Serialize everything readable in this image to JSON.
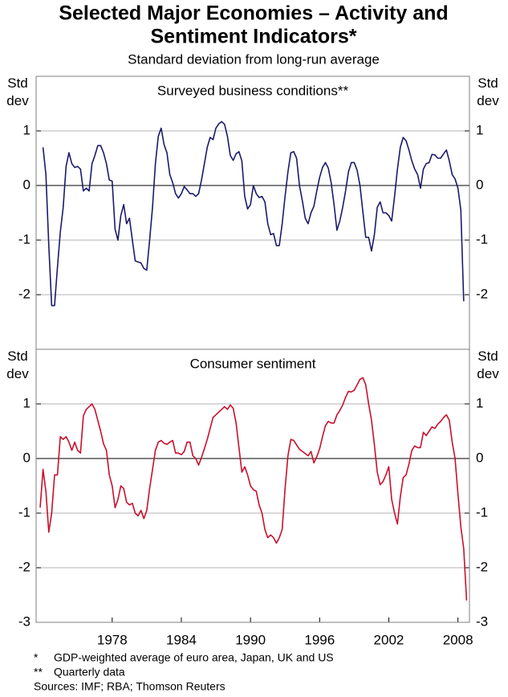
{
  "title": [
    "Selected Major Economies – Activity and",
    "Sentiment  Indicators*"
  ],
  "subtitle": "Standard deviation from long-run average",
  "notes": [
    {
      "marker": "*",
      "text": "GDP-weighted average of euro area, Japan, UK and US"
    },
    {
      "marker": "**",
      "text": "Quarterly data"
    }
  ],
  "sources": "Sources: IMF; RBA; Thomson Reuters",
  "chart_data": [
    {
      "type": "line",
      "title": "Surveyed business conditions**",
      "ylabel": "Std dev",
      "xlim": [
        1971.4,
        2009
      ],
      "ylim": [
        -3,
        2
      ],
      "yticks": [
        -2,
        -1,
        0,
        1
      ],
      "grid": true,
      "x": [
        1972,
        1972.25,
        1972.5,
        1972.75,
        1973,
        1973.25,
        1973.5,
        1973.75,
        1974,
        1974.25,
        1974.5,
        1974.75,
        1975,
        1975.25,
        1975.5,
        1975.75,
        1976,
        1976.25,
        1976.5,
        1976.75,
        1977,
        1977.25,
        1977.5,
        1977.75,
        1978,
        1978.25,
        1978.5,
        1978.75,
        1979,
        1979.25,
        1979.5,
        1979.75,
        1980,
        1980.25,
        1980.5,
        1980.75,
        1981,
        1981.25,
        1981.5,
        1981.75,
        1982,
        1982.25,
        1982.5,
        1982.75,
        1983,
        1983.25,
        1983.5,
        1983.75,
        1984,
        1984.25,
        1984.5,
        1984.75,
        1985,
        1985.25,
        1985.5,
        1985.75,
        1986,
        1986.25,
        1986.5,
        1986.75,
        1987,
        1987.25,
        1987.5,
        1987.75,
        1988,
        1988.25,
        1988.5,
        1988.75,
        1989,
        1989.25,
        1989.5,
        1989.75,
        1990,
        1990.25,
        1990.5,
        1990.75,
        1991,
        1991.25,
        1991.5,
        1991.75,
        1992,
        1992.25,
        1992.5,
        1992.75,
        1993,
        1993.25,
        1993.5,
        1993.75,
        1994,
        1994.25,
        1994.5,
        1994.75,
        1995,
        1995.25,
        1995.5,
        1995.75,
        1996,
        1996.25,
        1996.5,
        1996.75,
        1997,
        1997.25,
        1997.5,
        1997.75,
        1998,
        1998.25,
        1998.5,
        1998.75,
        1999,
        1999.25,
        1999.5,
        1999.75,
        2000,
        2000.25,
        2000.5,
        2000.75,
        2001,
        2001.25,
        2001.5,
        2001.75,
        2002,
        2002.25,
        2002.5,
        2002.75,
        2003,
        2003.25,
        2003.5,
        2003.75,
        2004,
        2004.25,
        2004.5,
        2004.75,
        2005,
        2005.25,
        2005.5,
        2005.75,
        2006,
        2006.25,
        2006.5,
        2006.75,
        2007,
        2007.25,
        2007.5,
        2007.75,
        2008,
        2008.25,
        2008.5
      ],
      "series": [
        {
          "color": "#1b1a6b",
          "values": [
            0.7,
            0.2,
            -1.1,
            -2.2,
            -2.2,
            -1.5,
            -0.85,
            -0.4,
            0.35,
            0.6,
            0.4,
            0.33,
            0.35,
            0.3,
            -0.1,
            -0.05,
            -0.1,
            0.4,
            0.55,
            0.73,
            0.73,
            0.6,
            0.4,
            0.1,
            0.08,
            -0.8,
            -1.0,
            -0.55,
            -0.35,
            -0.7,
            -0.6,
            -1.0,
            -1.38,
            -1.4,
            -1.42,
            -1.52,
            -1.55,
            -1.0,
            -0.4,
            0.4,
            0.9,
            1.05,
            0.75,
            0.6,
            0.2,
            0.05,
            -0.15,
            -0.23,
            -0.15,
            -0.02,
            -0.08,
            -0.15,
            -0.15,
            -0.2,
            -0.15,
            0.1,
            0.4,
            0.7,
            0.88,
            0.84,
            1.05,
            1.13,
            1.17,
            1.12,
            0.9,
            0.55,
            0.46,
            0.58,
            0.62,
            0.45,
            -0.2,
            -0.43,
            -0.35,
            0.0,
            -0.15,
            -0.22,
            -0.2,
            -0.3,
            -0.7,
            -0.9,
            -0.88,
            -1.1,
            -1.1,
            -0.7,
            -0.2,
            0.25,
            0.6,
            0.62,
            0.5,
            0.0,
            -0.28,
            -0.6,
            -0.7,
            -0.5,
            -0.38,
            -0.1,
            0.15,
            0.33,
            0.42,
            0.32,
            0.05,
            -0.35,
            -0.82,
            -0.65,
            -0.4,
            -0.1,
            0.25,
            0.42,
            0.42,
            0.28,
            0.0,
            -0.48,
            -0.95,
            -0.95,
            -1.2,
            -0.9,
            -0.4,
            -0.3,
            -0.5,
            -0.5,
            -0.55,
            -0.65,
            -0.2,
            0.3,
            0.7,
            0.88,
            0.82,
            0.65,
            0.45,
            0.3,
            0.2,
            -0.05,
            0.3,
            0.4,
            0.42,
            0.57,
            0.56,
            0.5,
            0.5,
            0.58,
            0.65,
            0.45,
            0.2,
            0.12,
            -0.05,
            -0.45,
            -2.12
          ]
        }
      ]
    },
    {
      "type": "line",
      "title": "Consumer sentiment",
      "ylabel": "Std dev",
      "xlim": [
        1971.4,
        2009
      ],
      "ylim": [
        -3,
        2
      ],
      "yticks": [
        -3,
        -2,
        -1,
        0,
        1
      ],
      "grid": true,
      "xticks": [
        1978,
        1984,
        1990,
        1996,
        2002,
        2008
      ],
      "x": [
        1971.75,
        1972,
        1972.25,
        1972.5,
        1972.75,
        1973,
        1973.25,
        1973.5,
        1973.75,
        1974,
        1974.25,
        1974.5,
        1974.75,
        1975,
        1975.25,
        1975.5,
        1975.75,
        1976,
        1976.25,
        1976.5,
        1976.75,
        1977,
        1977.25,
        1977.5,
        1977.75,
        1978,
        1978.25,
        1978.5,
        1978.75,
        1979,
        1979.25,
        1979.5,
        1979.75,
        1980,
        1980.25,
        1980.5,
        1980.75,
        1981,
        1981.25,
        1981.5,
        1981.75,
        1982,
        1982.25,
        1982.5,
        1982.75,
        1983,
        1983.25,
        1983.5,
        1983.75,
        1984,
        1984.25,
        1984.5,
        1984.75,
        1985,
        1985.25,
        1985.5,
        1985.75,
        1986,
        1986.25,
        1986.5,
        1986.75,
        1987,
        1987.25,
        1987.5,
        1987.75,
        1988,
        1988.25,
        1988.5,
        1988.75,
        1989,
        1989.25,
        1989.5,
        1989.75,
        1990,
        1990.25,
        1990.5,
        1990.75,
        1991,
        1991.25,
        1991.5,
        1991.75,
        1992,
        1992.25,
        1992.5,
        1992.75,
        1993,
        1993.25,
        1993.5,
        1993.75,
        1994,
        1994.25,
        1994.5,
        1994.75,
        1995,
        1995.25,
        1995.5,
        1995.75,
        1996,
        1996.25,
        1996.5,
        1996.75,
        1997,
        1997.25,
        1997.5,
        1997.75,
        1998,
        1998.25,
        1998.5,
        1998.75,
        1999,
        1999.25,
        1999.5,
        1999.75,
        2000,
        2000.25,
        2000.5,
        2000.75,
        2001,
        2001.25,
        2001.5,
        2001.75,
        2002,
        2002.25,
        2002.5,
        2002.75,
        2003,
        2003.25,
        2003.5,
        2003.75,
        2004,
        2004.25,
        2004.5,
        2004.75,
        2005,
        2005.25,
        2005.5,
        2005.75,
        2006,
        2006.25,
        2006.5,
        2006.75,
        2007,
        2007.25,
        2007.5,
        2007.75,
        2008,
        2008.25,
        2008.5,
        2008.75
      ],
      "series": [
        {
          "color": "#c8102e",
          "values": [
            -0.9,
            -0.2,
            -0.6,
            -1.35,
            -1.0,
            -0.3,
            -0.3,
            0.4,
            0.35,
            0.4,
            0.3,
            0.15,
            0.3,
            0.15,
            0.1,
            0.78,
            0.9,
            0.95,
            1.0,
            0.9,
            0.7,
            0.5,
            0.27,
            0.15,
            -0.3,
            -0.5,
            -0.9,
            -0.75,
            -0.5,
            -0.55,
            -0.8,
            -0.85,
            -0.82,
            -1.0,
            -1.05,
            -0.95,
            -1.1,
            -0.95,
            -0.55,
            -0.2,
            0.15,
            0.3,
            0.33,
            0.28,
            0.26,
            0.3,
            0.33,
            0.1,
            0.1,
            0.07,
            0.13,
            0.3,
            0.3,
            0.05,
            0.0,
            -0.12,
            0.02,
            0.18,
            0.35,
            0.55,
            0.75,
            0.8,
            0.85,
            0.9,
            0.95,
            0.9,
            0.98,
            0.92,
            0.65,
            0.2,
            -0.25,
            -0.15,
            -0.3,
            -0.5,
            -0.57,
            -0.6,
            -0.85,
            -1.0,
            -1.3,
            -1.45,
            -1.4,
            -1.45,
            -1.55,
            -1.45,
            -1.3,
            -0.55,
            0.05,
            0.35,
            0.33,
            0.25,
            0.17,
            0.13,
            0.09,
            0.05,
            0.13,
            -0.08,
            0.03,
            0.18,
            0.4,
            0.6,
            0.68,
            0.65,
            0.65,
            0.8,
            0.88,
            0.98,
            1.12,
            1.23,
            1.22,
            1.25,
            1.35,
            1.45,
            1.48,
            1.35,
            1.0,
            0.7,
            0.25,
            -0.25,
            -0.48,
            -0.42,
            -0.3,
            -0.15,
            -0.75,
            -1.0,
            -1.2,
            -0.7,
            -0.35,
            -0.3,
            -0.1,
            0.15,
            0.23,
            0.2,
            0.2,
            0.48,
            0.42,
            0.5,
            0.58,
            0.55,
            0.63,
            0.68,
            0.75,
            0.8,
            0.7,
            0.3,
            0.0,
            -0.65,
            -1.25,
            -1.65,
            -2.6
          ]
        }
      ]
    }
  ]
}
